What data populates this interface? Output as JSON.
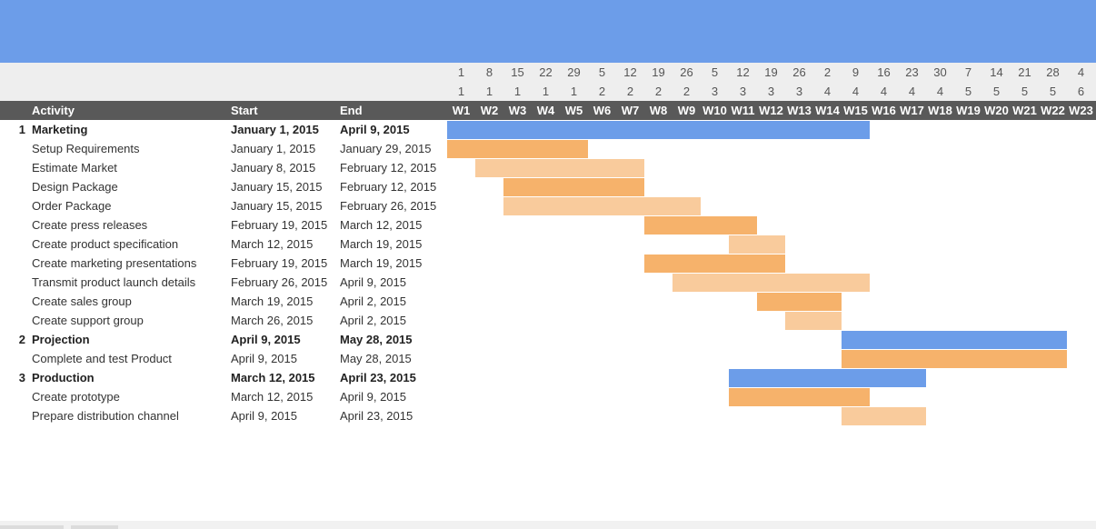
{
  "colors": {
    "banner": "#6c9de9",
    "header_bg": "#595959",
    "summary_bar": "#6c9de9",
    "task_bar_dark": "#f6b26b",
    "task_bar_light": "#f9cb9c"
  },
  "header": {
    "activity": "Activity",
    "start": "Start",
    "end": "End"
  },
  "timeline": {
    "days": [
      "1",
      "8",
      "15",
      "22",
      "29",
      "5",
      "12",
      "19",
      "26",
      "5",
      "12",
      "19",
      "26",
      "2",
      "9",
      "16",
      "23",
      "30",
      "7",
      "14",
      "21",
      "28",
      "4"
    ],
    "months": [
      "1",
      "1",
      "1",
      "1",
      "1",
      "2",
      "2",
      "2",
      "2",
      "3",
      "3",
      "3",
      "3",
      "4",
      "4",
      "4",
      "4",
      "4",
      "5",
      "5",
      "5",
      "5",
      "6"
    ],
    "weeks": [
      "W1",
      "W2",
      "W3",
      "W4",
      "W5",
      "W6",
      "W7",
      "W8",
      "W9",
      "W10",
      "W11",
      "W12",
      "W13",
      "W14",
      "W15",
      "W16",
      "W17",
      "W18",
      "W19",
      "W20",
      "W21",
      "W22",
      "W23"
    ]
  },
  "chart_data": {
    "type": "gantt",
    "timeline_start": "2015-01-01",
    "tasks": [
      {
        "num": "1",
        "name": "Marketing",
        "start": "January 1, 2015",
        "end": "April 9, 2015",
        "start_date": "2015-01-01",
        "end_date": "2015-04-09",
        "summary": true
      },
      {
        "num": "",
        "name": "Setup Requirements",
        "start": "January 1, 2015",
        "end": "January 29, 2015",
        "start_date": "2015-01-01",
        "end_date": "2015-01-29",
        "shade": "dark"
      },
      {
        "num": "",
        "name": "Estimate Market",
        "start": "January 8, 2015",
        "end": "February 12, 2015",
        "start_date": "2015-01-08",
        "end_date": "2015-02-12",
        "shade": "light"
      },
      {
        "num": "",
        "name": "Design Package",
        "start": "January 15, 2015",
        "end": "February 12, 2015",
        "start_date": "2015-01-15",
        "end_date": "2015-02-12",
        "shade": "dark"
      },
      {
        "num": "",
        "name": "Order Package",
        "start": "January 15, 2015",
        "end": "February 26, 2015",
        "start_date": "2015-01-15",
        "end_date": "2015-02-26",
        "shade": "light"
      },
      {
        "num": "",
        "name": "Create press releases",
        "start": "February 19, 2015",
        "end": "March 12, 2015",
        "start_date": "2015-02-19",
        "end_date": "2015-03-12",
        "shade": "dark"
      },
      {
        "num": "",
        "name": "Create product specification",
        "start": "March 12, 2015",
        "end": "March 19, 2015",
        "start_date": "2015-03-12",
        "end_date": "2015-03-19",
        "shade": "light"
      },
      {
        "num": "",
        "name": "Create marketing presentations",
        "start": "February 19, 2015",
        "end": "March 19, 2015",
        "start_date": "2015-02-19",
        "end_date": "2015-03-19",
        "shade": "dark"
      },
      {
        "num": "",
        "name": "Transmit product launch details",
        "start": "February 26, 2015",
        "end": "April 9, 2015",
        "start_date": "2015-02-26",
        "end_date": "2015-04-09",
        "shade": "light"
      },
      {
        "num": "",
        "name": "Create sales group",
        "start": "March 19, 2015",
        "end": "April 2, 2015",
        "start_date": "2015-03-19",
        "end_date": "2015-04-02",
        "shade": "dark"
      },
      {
        "num": "",
        "name": "Create support group",
        "start": "March 26, 2015",
        "end": "April 2, 2015",
        "start_date": "2015-03-26",
        "end_date": "2015-04-02",
        "shade": "light"
      },
      {
        "num": "2",
        "name": "Projection",
        "start": "April 9, 2015",
        "end": "May 28, 2015",
        "start_date": "2015-04-09",
        "end_date": "2015-05-28",
        "summary": true
      },
      {
        "num": "",
        "name": "Complete and test Product",
        "start": "April 9, 2015",
        "end": "May 28, 2015",
        "start_date": "2015-04-09",
        "end_date": "2015-05-28",
        "shade": "dark"
      },
      {
        "num": "3",
        "name": "Production",
        "start": "March 12, 2015",
        "end": "April 23, 2015",
        "start_date": "2015-03-12",
        "end_date": "2015-04-23",
        "summary": true
      },
      {
        "num": "",
        "name": "Create prototype",
        "start": "March 12, 2015",
        "end": "April 9, 2015",
        "start_date": "2015-03-12",
        "end_date": "2015-04-09",
        "shade": "dark"
      },
      {
        "num": "",
        "name": "Prepare distribution channel",
        "start": "April 9, 2015",
        "end": "April 23, 2015",
        "start_date": "2015-04-09",
        "end_date": "2015-04-23",
        "shade": "light"
      }
    ]
  }
}
